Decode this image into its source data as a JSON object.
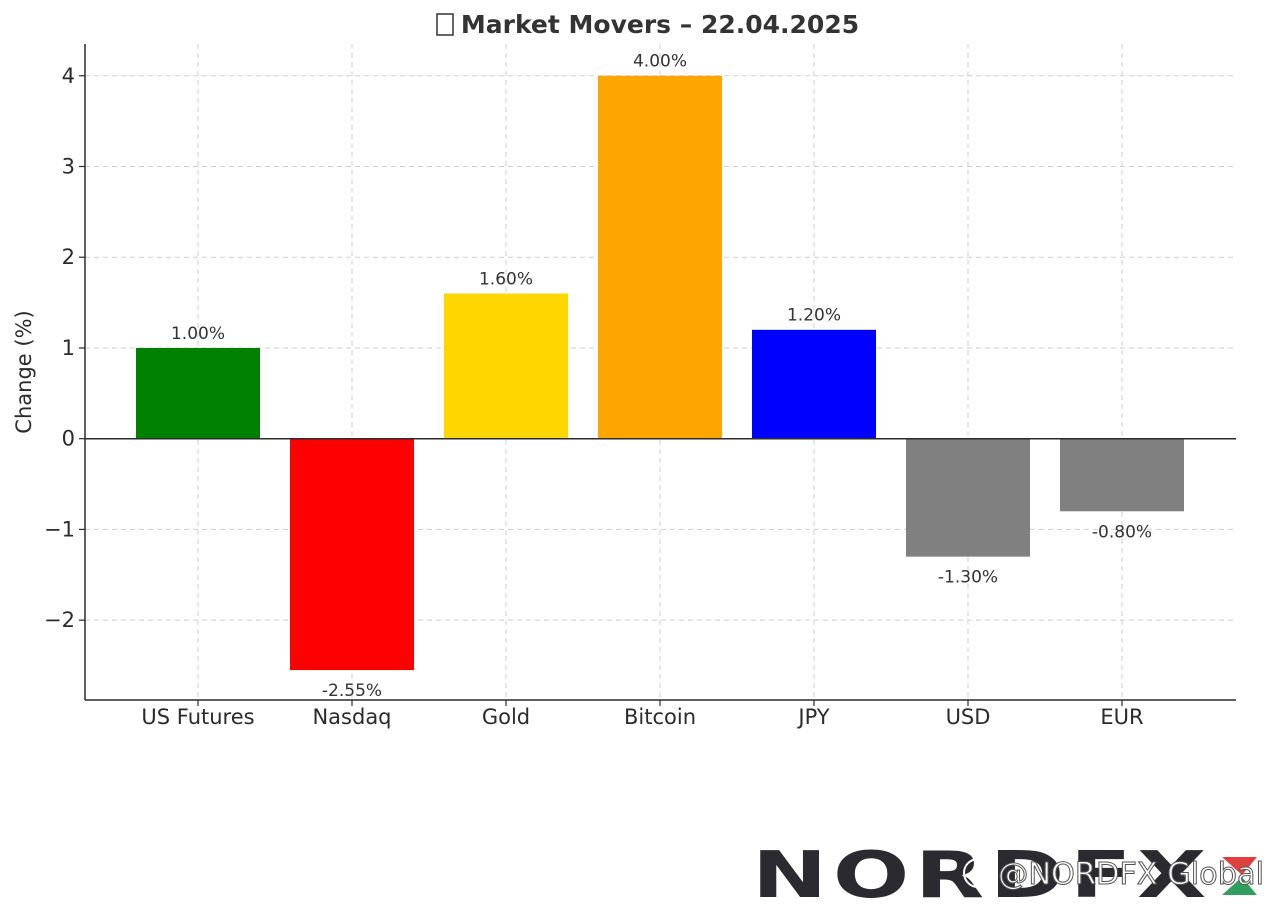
{
  "chart_data": {
    "type": "bar",
    "title_icon": "chart-icon",
    "title": "Market Movers – 22.04.2025",
    "ylabel": "Change (%)",
    "xlabel": "",
    "categories": [
      "US Futures",
      "Nasdaq",
      "Gold",
      "Bitcoin",
      "JPY",
      "USD",
      "EUR"
    ],
    "values": [
      1.0,
      -2.55,
      1.6,
      4.0,
      1.2,
      -1.3,
      -0.8
    ],
    "value_labels": [
      "1.00%",
      "-2.55%",
      "1.60%",
      "4.00%",
      "1.20%",
      "-1.30%",
      "-0.80%"
    ],
    "colors": [
      "#008000",
      "#ff0000",
      "#ffd700",
      "#ffa500",
      "#0000ff",
      "#808080",
      "#808080"
    ],
    "yticks": [
      -2,
      -1,
      0,
      1,
      2,
      3,
      4
    ],
    "ytick_labels": [
      "−2",
      "−1",
      "0",
      "1",
      "2",
      "3",
      "4"
    ],
    "ylim": [
      -2.88,
      4.35
    ],
    "grid": true,
    "zero_line": true
  },
  "watermark": {
    "logo_text": "NORDFX",
    "handle_icon": "social-icon",
    "handle_text": "@NORDFX Global"
  }
}
